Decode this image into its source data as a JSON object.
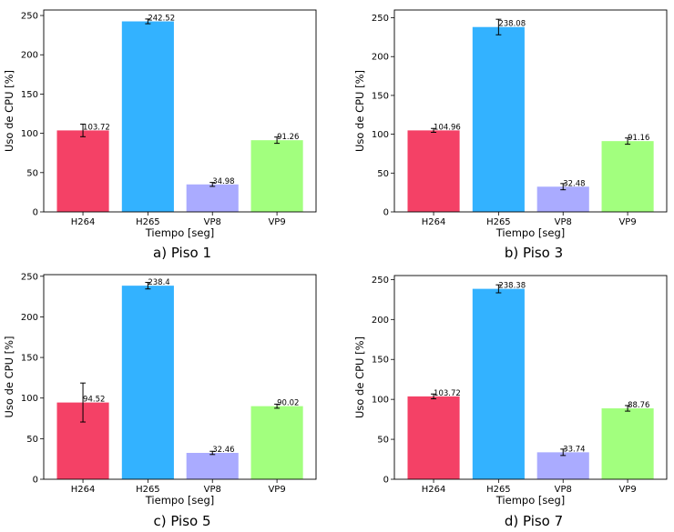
{
  "colors": {
    "H264": "#f44166",
    "H265": "#33b2ff",
    "VP8": "#aaabff",
    "VP9": "#a2ff7e"
  },
  "chart_data": [
    {
      "type": "bar",
      "caption_letter": "a)",
      "caption_text": "Piso 1",
      "categories": [
        "H264",
        "H265",
        "VP8",
        "VP9"
      ],
      "values": [
        103.72,
        242.52,
        34.98,
        91.26
      ],
      "errors": [
        8,
        3,
        2.5,
        4
      ],
      "value_labels": [
        "103.72",
        "242.52",
        "34.98",
        "91.26"
      ],
      "xlabel": "Tiempo [seg]",
      "ylabel": "Uso de CPU [%]",
      "ylim": [
        0,
        257
      ],
      "yticks": [
        "0",
        "50",
        "100",
        "150",
        "200",
        "250"
      ]
    },
    {
      "type": "bar",
      "caption_letter": "b)",
      "caption_text": "Piso 3",
      "categories": [
        "H264",
        "H265",
        "VP8",
        "VP9"
      ],
      "values": [
        104.96,
        238.08,
        32.48,
        91.16
      ],
      "errors": [
        2.5,
        10,
        4,
        4
      ],
      "value_labels": [
        "104.96",
        "238.08",
        "32.48",
        "91.16"
      ],
      "xlabel": "Tiempo [seg]",
      "ylabel": "Uso de CPU [%]",
      "ylim": [
        0,
        260
      ],
      "yticks": [
        "0",
        "50",
        "100",
        "150",
        "200",
        "250"
      ]
    },
    {
      "type": "bar",
      "caption_letter": "c)",
      "caption_text": "Piso 5",
      "categories": [
        "H264",
        "H265",
        "VP8",
        "VP9"
      ],
      "values": [
        94.52,
        238.4,
        32.46,
        90.02
      ],
      "errors": [
        24,
        4,
        2,
        2.5
      ],
      "value_labels": [
        "94.52",
        "238.4",
        "32.46",
        "90.02"
      ],
      "xlabel": "Tiempo [seg]",
      "ylabel": "Uso de CPU [%]",
      "ylim": [
        0,
        252
      ],
      "yticks": [
        "0",
        "50",
        "100",
        "150",
        "200",
        "250"
      ]
    },
    {
      "type": "bar",
      "caption_letter": "d)",
      "caption_text": "Piso 7",
      "categories": [
        "H264",
        "H265",
        "VP8",
        "VP9"
      ],
      "values": [
        103.72,
        238.38,
        33.74,
        88.76
      ],
      "errors": [
        3,
        5,
        4,
        3.5
      ],
      "value_labels": [
        "103.72",
        "238.38",
        "33.74",
        "88.76"
      ],
      "xlabel": "Tiempo [seg]",
      "ylabel": "Uso de CPU [%]",
      "ylim": [
        0,
        255
      ],
      "yticks": [
        "0",
        "50",
        "100",
        "150",
        "200",
        "250"
      ]
    }
  ]
}
